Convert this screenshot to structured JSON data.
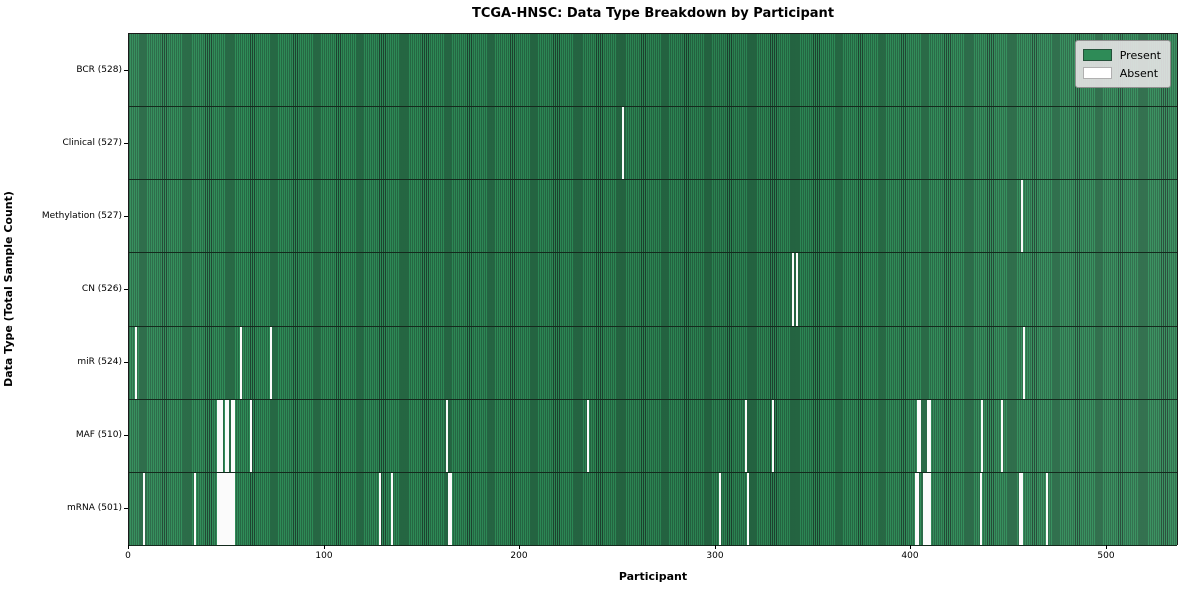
{
  "chart_data": {
    "type": "heatmap",
    "title": "TCGA-HNSC: Data Type Breakdown by Participant",
    "xlabel": "Participant",
    "ylabel": "Data Type (Total Sample Count)",
    "x_ticks": [
      0,
      100,
      200,
      300,
      400,
      500
    ],
    "xlim": [
      0,
      537
    ],
    "n_participants": 528,
    "legend": {
      "position": "upper right",
      "present_label": "Present",
      "absent_label": "Absent"
    },
    "colors": {
      "present": "#2e8b57",
      "absent": "#ffffff",
      "bar_edge": "#1d4430",
      "legend_background": "#e2e2e2"
    },
    "rows": [
      {
        "label": "BCR (528)",
        "name": "BCR",
        "total": 528,
        "absent_participants": []
      },
      {
        "label": "Clinical (527)",
        "name": "Clinical",
        "total": 527,
        "absent_participants": [
          252
        ]
      },
      {
        "label": "Methylation (527)",
        "name": "Methylation",
        "total": 527,
        "absent_participants": [
          456
        ]
      },
      {
        "label": "CN (526)",
        "name": "CN",
        "total": 526,
        "absent_participants": [
          339,
          341
        ]
      },
      {
        "label": "miR (524)",
        "name": "miR",
        "total": 524,
        "absent_participants": [
          3,
          57,
          72,
          457
        ]
      },
      {
        "label": "MAF (510)",
        "name": "MAF",
        "total": 510,
        "absent_participants": [
          45,
          46,
          47,
          49,
          50,
          52,
          53,
          62,
          162,
          234,
          315,
          329,
          403,
          404,
          408,
          409,
          436,
          446
        ]
      },
      {
        "label": "mRNA (501)",
        "name": "mRNA",
        "total": 501,
        "absent_participants": [
          7,
          33,
          45,
          46,
          47,
          48,
          49,
          50,
          51,
          52,
          53,
          128,
          134,
          163,
          164,
          302,
          316,
          402,
          403,
          406,
          407,
          408,
          409,
          435,
          455,
          456,
          469
        ]
      }
    ]
  }
}
